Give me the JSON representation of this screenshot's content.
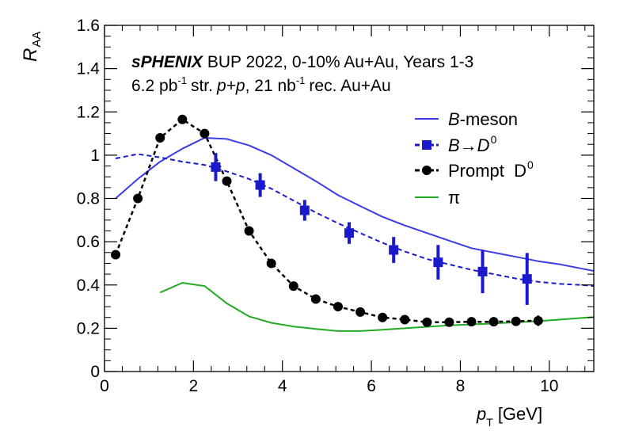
{
  "chart_data": {
    "type": "line",
    "title": "",
    "xlabel": {
      "main": "p",
      "sub": "T",
      "unit": "[GeV]"
    },
    "ylabel": {
      "main": "R",
      "sub": "AA"
    },
    "xlim": [
      0,
      11
    ],
    "ylim": [
      0,
      1.6
    ],
    "x_ticks": [
      0,
      2,
      4,
      6,
      8,
      10
    ],
    "y_ticks": [
      0,
      0.2,
      0.4,
      0.6,
      0.8,
      1,
      1.2,
      1.4,
      1.6
    ],
    "x_tick_labels": [
      "0",
      "2",
      "4",
      "6",
      "8",
      "10"
    ],
    "y_tick_labels": [
      "0",
      "0.2",
      "0.4",
      "0.6",
      "0.8",
      "1",
      "1.2",
      "1.4",
      "1.6"
    ],
    "annotations": {
      "line1_bold": "sPHENIX",
      "line1_rest": "BUP 2022, 0-10% Au+Au, Years 1-3",
      "line2_a": "6.2 pb",
      "line2_sup1": "-1",
      "line2_b": "str.",
      "line2_pp": "p+p",
      "line2_c": ", 21 nb",
      "line2_sup2": "-1",
      "line2_d": "rec. Au+Au"
    },
    "series": [
      {
        "name": "B-meson",
        "legend_main": "B",
        "legend_rest": "-meson",
        "color": "#3b3bea",
        "style": "solid",
        "x": [
          0.25,
          0.75,
          1.25,
          1.75,
          2.25,
          2.75,
          3.25,
          3.75,
          4.25,
          4.75,
          5.25,
          5.75,
          6.25,
          6.75,
          7.25,
          7.75,
          8.25,
          8.75,
          9.25,
          9.75,
          10.25,
          10.75,
          11
        ],
        "y": [
          0.8,
          0.89,
          0.97,
          1.03,
          1.08,
          1.075,
          1.045,
          1.0,
          0.94,
          0.88,
          0.815,
          0.765,
          0.715,
          0.675,
          0.64,
          0.605,
          0.57,
          0.55,
          0.53,
          0.51,
          0.495,
          0.475,
          0.465
        ]
      },
      {
        "name": "B→D0",
        "legend_main": "B→D",
        "legend_sup": "0",
        "color": "#1a1acc",
        "style": "dashed",
        "curve_x": [
          0.25,
          0.75,
          1.25,
          1.75,
          2.25,
          2.75,
          3.25,
          3.75,
          4.25,
          4.75,
          5.25,
          5.75,
          6.25,
          6.75,
          7.25,
          7.75,
          8.25,
          8.75,
          9.25,
          9.75,
          10.25,
          10.75,
          11
        ],
        "curve_y": [
          0.985,
          1.005,
          0.99,
          0.97,
          0.955,
          0.925,
          0.89,
          0.845,
          0.79,
          0.735,
          0.685,
          0.64,
          0.595,
          0.555,
          0.52,
          0.495,
          0.47,
          0.45,
          0.43,
          0.415,
          0.405,
          0.4,
          0.395
        ],
        "x": [
          2.5,
          3.5,
          4.5,
          5.5,
          6.5,
          7.5,
          8.5,
          9.5
        ],
        "y": [
          0.945,
          0.862,
          0.745,
          0.64,
          0.562,
          0.505,
          0.462,
          0.428
        ],
        "yerr": [
          0.065,
          0.055,
          0.048,
          0.05,
          0.06,
          0.08,
          0.1,
          0.12
        ]
      },
      {
        "name": "Prompt D0",
        "legend_main": "Prompt  D",
        "legend_sup": "0",
        "color": "#000000",
        "style": "dashed",
        "x": [
          0.25,
          0.75,
          1.25,
          1.75,
          2.25,
          2.75,
          3.25,
          3.75,
          4.25,
          4.75,
          5.25,
          5.75,
          6.25,
          6.75,
          7.25,
          7.75,
          8.25,
          8.75,
          9.25,
          9.75
        ],
        "y": [
          0.54,
          0.8,
          1.08,
          1.165,
          1.1,
          0.88,
          0.65,
          0.5,
          0.395,
          0.335,
          0.3,
          0.275,
          0.25,
          0.24,
          0.228,
          0.228,
          0.23,
          0.23,
          0.232,
          0.235
        ],
        "yerr_last": 0.025
      },
      {
        "name": "π",
        "legend_main": "π",
        "color": "#22aa22",
        "style": "solid",
        "x": [
          1.25,
          1.75,
          2.25,
          2.75,
          3.25,
          3.75,
          4.25,
          4.75,
          5.25,
          5.75,
          6.25,
          6.75,
          7.25,
          7.75,
          8.25,
          8.75,
          9.25,
          9.75,
          10.25,
          10.75,
          11
        ],
        "y": [
          0.365,
          0.41,
          0.395,
          0.315,
          0.255,
          0.225,
          0.208,
          0.197,
          0.187,
          0.187,
          0.193,
          0.2,
          0.207,
          0.213,
          0.218,
          0.222,
          0.228,
          0.233,
          0.24,
          0.248,
          0.252
        ]
      }
    ]
  }
}
